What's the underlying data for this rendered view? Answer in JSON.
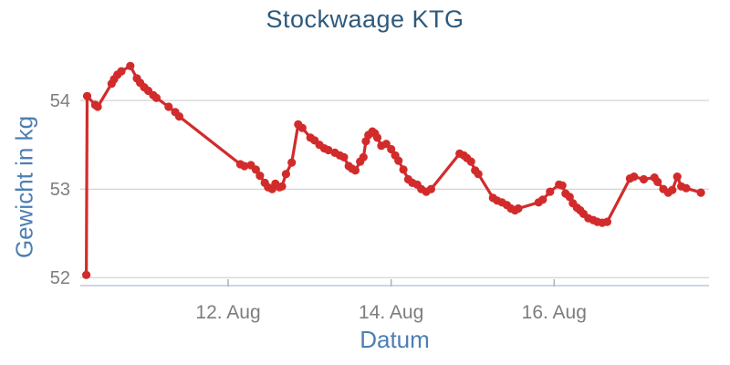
{
  "colors": {
    "series_red": "#d22b2b",
    "chart_title": "#2e5a7c",
    "axis_title": "#4d7eb3",
    "tick_label": "#7d7d7d",
    "gridline": "#c9c9c9",
    "axis_line": "#ccd6e6",
    "tick_mark": "#a5b2c2",
    "background": "#ffffff"
  },
  "chart_data": {
    "type": "line",
    "title": "Stockwaage KTG",
    "xlabel": "Datum",
    "ylabel": "Gewicht in kg",
    "x_unit": "days since 10. Aug 00:00",
    "xlim": [
      0.186,
      7.9
    ],
    "ylim": [
      51.92,
      54.62
    ],
    "grid": "horizontal",
    "legend": "none",
    "x_ticks": [
      {
        "value": 2,
        "label": "12. Aug"
      },
      {
        "value": 4,
        "label": "14. Aug"
      },
      {
        "value": 6,
        "label": "16. Aug"
      }
    ],
    "y_ticks": [
      {
        "value": 52,
        "label": "52"
      },
      {
        "value": 53,
        "label": "53"
      },
      {
        "value": 54,
        "label": "54"
      }
    ],
    "series": [
      {
        "name": "Stockwaage KTG",
        "color": "#d22b2b",
        "marker": "circle",
        "points": [
          [
            0.26,
            52.03
          ],
          [
            0.27,
            54.05
          ],
          [
            0.37,
            53.95
          ],
          [
            0.4,
            53.93
          ],
          [
            0.57,
            54.19
          ],
          [
            0.6,
            54.24
          ],
          [
            0.64,
            54.29
          ],
          [
            0.69,
            54.33
          ],
          [
            0.8,
            54.39
          ],
          [
            0.88,
            54.25
          ],
          [
            0.92,
            54.2
          ],
          [
            0.97,
            54.15
          ],
          [
            1.02,
            54.11
          ],
          [
            1.08,
            54.06
          ],
          [
            1.12,
            54.03
          ],
          [
            1.27,
            53.93
          ],
          [
            1.35,
            53.87
          ],
          [
            1.4,
            53.82
          ],
          [
            2.15,
            53.28
          ],
          [
            2.2,
            53.26
          ],
          [
            2.28,
            53.27
          ],
          [
            2.34,
            53.22
          ],
          [
            2.39,
            53.15
          ],
          [
            2.45,
            53.07
          ],
          [
            2.49,
            53.02
          ],
          [
            2.54,
            53.0
          ],
          [
            2.58,
            53.06
          ],
          [
            2.63,
            53.02
          ],
          [
            2.66,
            53.03
          ],
          [
            2.71,
            53.17
          ],
          [
            2.78,
            53.3
          ],
          [
            2.86,
            53.73
          ],
          [
            2.91,
            53.69
          ],
          [
            3.01,
            53.58
          ],
          [
            3.06,
            53.55
          ],
          [
            3.12,
            53.5
          ],
          [
            3.18,
            53.46
          ],
          [
            3.23,
            53.44
          ],
          [
            3.31,
            53.41
          ],
          [
            3.37,
            53.38
          ],
          [
            3.42,
            53.36
          ],
          [
            3.48,
            53.26
          ],
          [
            3.52,
            53.23
          ],
          [
            3.56,
            53.21
          ],
          [
            3.62,
            53.31
          ],
          [
            3.66,
            53.36
          ],
          [
            3.69,
            53.54
          ],
          [
            3.72,
            53.61
          ],
          [
            3.77,
            53.65
          ],
          [
            3.8,
            53.63
          ],
          [
            3.83,
            53.58
          ],
          [
            3.88,
            53.49
          ],
          [
            3.94,
            53.51
          ],
          [
            4.0,
            53.45
          ],
          [
            4.05,
            53.38
          ],
          [
            4.09,
            53.32
          ],
          [
            4.15,
            53.22
          ],
          [
            4.21,
            53.11
          ],
          [
            4.26,
            53.07
          ],
          [
            4.32,
            53.05
          ],
          [
            4.37,
            53.0
          ],
          [
            4.43,
            52.97
          ],
          [
            4.49,
            53.0
          ],
          [
            4.84,
            53.4
          ],
          [
            4.89,
            53.38
          ],
          [
            4.93,
            53.35
          ],
          [
            4.98,
            53.31
          ],
          [
            5.03,
            53.21
          ],
          [
            5.07,
            53.17
          ],
          [
            5.25,
            52.9
          ],
          [
            5.3,
            52.87
          ],
          [
            5.36,
            52.85
          ],
          [
            5.42,
            52.82
          ],
          [
            5.47,
            52.78
          ],
          [
            5.52,
            52.76
          ],
          [
            5.56,
            52.78
          ],
          [
            5.81,
            52.85
          ],
          [
            5.86,
            52.88
          ],
          [
            5.95,
            52.97
          ],
          [
            6.06,
            53.05
          ],
          [
            6.1,
            53.04
          ],
          [
            6.14,
            52.95
          ],
          [
            6.19,
            52.91
          ],
          [
            6.23,
            52.84
          ],
          [
            6.28,
            52.79
          ],
          [
            6.32,
            52.76
          ],
          [
            6.36,
            52.72
          ],
          [
            6.42,
            52.67
          ],
          [
            6.48,
            52.65
          ],
          [
            6.53,
            52.63
          ],
          [
            6.59,
            52.62
          ],
          [
            6.65,
            52.63
          ],
          [
            6.93,
            53.12
          ],
          [
            6.98,
            53.14
          ],
          [
            7.1,
            53.11
          ],
          [
            7.23,
            53.13
          ],
          [
            7.27,
            53.08
          ],
          [
            7.34,
            53.0
          ],
          [
            7.4,
            52.96
          ],
          [
            7.45,
            52.99
          ],
          [
            7.51,
            53.14
          ],
          [
            7.56,
            53.03
          ],
          [
            7.62,
            53.01
          ],
          [
            7.8,
            52.96
          ]
        ]
      }
    ]
  }
}
